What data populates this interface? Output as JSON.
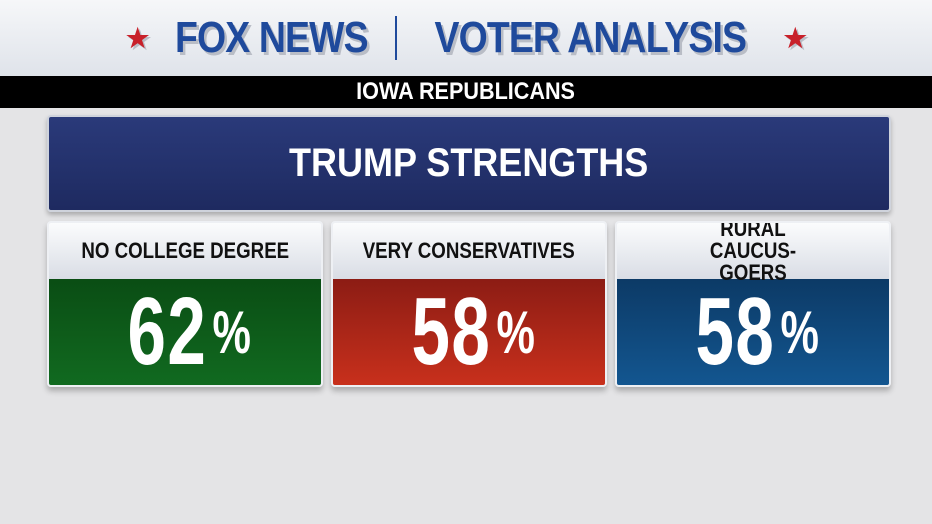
{
  "header": {
    "brand": "FOX NEWS",
    "title": "VOTER ANALYSIS",
    "star_color": "#c8202a",
    "brand_color": "#1f4a9c"
  },
  "subheader": "IOWA REPUBLICANS",
  "panel_title": "TRUMP STRENGTHS",
  "cards": [
    {
      "label": "NO COLLEGE DEGREE",
      "value": "62",
      "unit": "%",
      "color": "#0d5e1a"
    },
    {
      "label": "VERY CONSERVATIVES",
      "value": "58",
      "unit": "%",
      "color": "#b3261b"
    },
    {
      "label": "RURAL CAUCUS-GOERS",
      "value": "58",
      "unit": "%",
      "color": "#0f4a7c"
    }
  ]
}
